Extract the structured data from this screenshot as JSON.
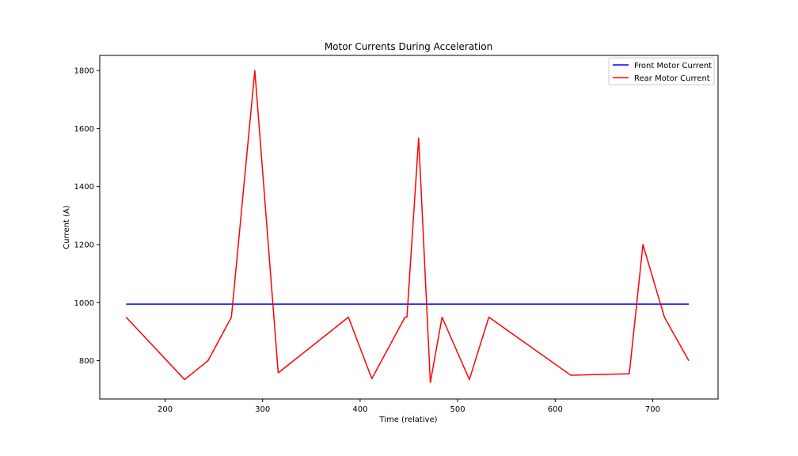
{
  "chart_data": {
    "type": "line",
    "title": "Motor Currents During Acceleration",
    "xlabel": "Time (relative)",
    "ylabel": "Current (A)",
    "xlim": [
      133,
      767
    ],
    "ylim": [
      668,
      1852
    ],
    "xticks": [
      200,
      300,
      400,
      500,
      600,
      700
    ],
    "yticks": [
      800,
      1000,
      1200,
      1400,
      1600,
      1800
    ],
    "xtick_labels": [
      "200",
      "300",
      "400",
      "500",
      "600",
      "700"
    ],
    "ytick_labels": [
      "800",
      "1000",
      "1200",
      "1400",
      "1600",
      "1800"
    ],
    "legend_position": "top-right",
    "grid": false,
    "series": [
      {
        "name": "Front Motor Current",
        "color": "#0000ff",
        "x": [
          160,
          737
        ],
        "y": [
          995,
          995
        ]
      },
      {
        "name": "Rear Motor Current",
        "color": "#ff0000",
        "x": [
          160,
          220,
          244,
          268,
          292,
          316,
          388,
          412,
          446,
          448,
          460,
          472,
          484,
          512,
          532,
          616,
          676,
          690,
          712,
          737
        ],
        "y": [
          950,
          735,
          800,
          950,
          1800,
          758,
          950,
          738,
          950,
          950,
          1567,
          725,
          950,
          735,
          950,
          750,
          755,
          1200,
          950,
          800
        ]
      }
    ]
  }
}
